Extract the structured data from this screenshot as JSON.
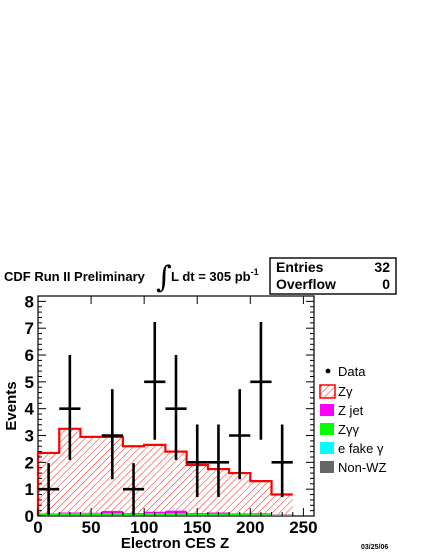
{
  "chart_data": {
    "type": "bar",
    "title_prefix": "CDF Run II Preliminary",
    "title_lumi": "L dt = 305 pb",
    "title_lumi_sup": "-1",
    "xlabel": "Electron CES Z",
    "ylabel": "Events",
    "xlim": [
      0,
      260
    ],
    "ylim": [
      0,
      8.2
    ],
    "x_ticks": [
      0,
      50,
      100,
      150,
      200,
      250
    ],
    "y_ticks": [
      0,
      1,
      2,
      3,
      4,
      5,
      6,
      7,
      8
    ],
    "bin_width": 20,
    "bin_edges": [
      0,
      20,
      40,
      60,
      80,
      100,
      120,
      140,
      160,
      180,
      200,
      220,
      240
    ],
    "stack_total": [
      2.35,
      3.25,
      2.95,
      2.95,
      2.6,
      2.65,
      2.4,
      1.9,
      1.75,
      1.6,
      1.3,
      0.8
    ],
    "series": [
      {
        "name": "Data",
        "style": "points",
        "x": [
          10,
          30,
          70,
          90,
          110,
          130,
          150,
          170,
          190,
          210,
          230
        ],
        "y": [
          1,
          4,
          3,
          1,
          5,
          4,
          2,
          2,
          3,
          5,
          2
        ],
        "yerr_low": [
          0.97,
          1.91,
          1.63,
          0.97,
          2.16,
          1.91,
          1.29,
          1.29,
          1.63,
          2.16,
          1.29
        ],
        "yerr_high": [
          0.97,
          2.0,
          1.73,
          0.97,
          2.23,
          2.0,
          1.41,
          1.41,
          1.73,
          2.23,
          1.41
        ]
      },
      {
        "name": "Zγ",
        "color": "#ff0000",
        "style": "hatched"
      },
      {
        "name": "Z jet",
        "color": "#ff00ff"
      },
      {
        "name": "Zγγ",
        "color": "#00ff00"
      },
      {
        "name": "e fake γ",
        "color": "#00ffff"
      },
      {
        "name": "Non-WZ",
        "color": "#666666"
      }
    ],
    "background_stack": {
      "nonwz": [
        0.04,
        0.04,
        0.04,
        0.04,
        0.04,
        0.04,
        0.04,
        0.04,
        0.04,
        0.04,
        0.04,
        0.03
      ],
      "zgg": [
        0.05,
        0.06,
        0.06,
        0.06,
        0.05,
        0.06,
        0.06,
        0.04,
        0.04,
        0.04,
        0.03,
        0.02
      ],
      "zjet": [
        0.01,
        0.03,
        0.02,
        0.09,
        0.02,
        0.06,
        0.1,
        0.03,
        0.05,
        0.02,
        0.03,
        0.01
      ]
    },
    "stats": {
      "entries_label": "Entries",
      "entries_value": "32",
      "overflow_label": "Overflow",
      "overflow_value": "0"
    },
    "legend_position": "right",
    "grid": false,
    "footer_date": "03/25/06"
  }
}
